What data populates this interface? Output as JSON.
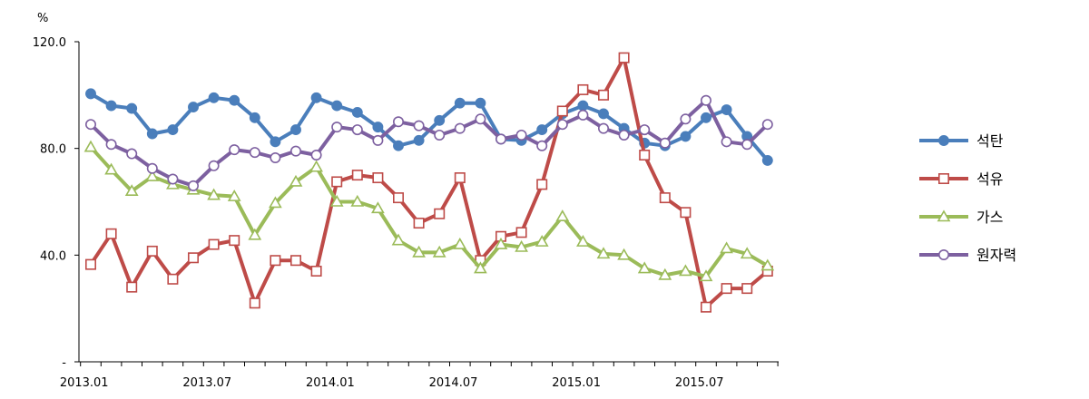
{
  "chart_data": {
    "type": "line",
    "ylabel": "%",
    "ylim": [
      0,
      120
    ],
    "y_ticks": [
      {
        "value": 0,
        "label": "-"
      },
      {
        "value": 40,
        "label": "40.0"
      },
      {
        "value": 80,
        "label": "80.0"
      },
      {
        "value": 120,
        "label": "120.0"
      }
    ],
    "x_ticks": [
      {
        "index": 0,
        "label": "2013.01"
      },
      {
        "index": 6,
        "label": "2013.07"
      },
      {
        "index": 12,
        "label": "2014.01"
      },
      {
        "index": 18,
        "label": "2014.07"
      },
      {
        "index": 24,
        "label": "2015.01"
      },
      {
        "index": 30,
        "label": "2015.07"
      }
    ],
    "x": [
      "2013.01",
      "2013.02",
      "2013.03",
      "2013.04",
      "2013.05",
      "2013.06",
      "2013.07",
      "2013.08",
      "2013.09",
      "2013.10",
      "2013.11",
      "2013.12",
      "2014.01",
      "2014.02",
      "2014.03",
      "2014.04",
      "2014.05",
      "2014.06",
      "2014.07",
      "2014.08",
      "2014.09",
      "2014.10",
      "2014.11",
      "2014.12",
      "2015.01",
      "2015.02",
      "2015.03",
      "2015.04",
      "2015.05",
      "2015.06",
      "2015.07",
      "2015.08",
      "2015.09",
      "2015.10"
    ],
    "legend_position": "right",
    "series": [
      {
        "name": "석탄",
        "color": "#4a7ebb",
        "marker": "filled-circle",
        "values": [
          100.5,
          96,
          95,
          85.5,
          87,
          95.5,
          99,
          98,
          91.5,
          82.5,
          87,
          99,
          96,
          93.5,
          88,
          81,
          83,
          90.5,
          97,
          97,
          83.5,
          83,
          87,
          93,
          96,
          93,
          87.5,
          82,
          81,
          84.5,
          91.5,
          94.5,
          84.5,
          75.5
        ]
      },
      {
        "name": "석유",
        "color": "#be4b48",
        "marker": "hollow-square",
        "values": [
          36.5,
          48,
          28,
          41.5,
          31,
          39,
          44,
          45.5,
          22,
          38,
          38,
          34,
          67.5,
          70,
          69,
          61.5,
          52,
          55.5,
          69,
          38,
          47,
          48.5,
          66.5,
          94,
          102,
          100,
          114,
          77.5,
          61.5,
          56,
          20.5,
          27.5,
          27.5,
          34
        ]
      },
      {
        "name": "가스",
        "color": "#9bbb59",
        "marker": "hollow-triangle",
        "values": [
          80.5,
          72,
          64,
          69.5,
          66.5,
          64.5,
          62.5,
          62,
          47.5,
          59.5,
          67.5,
          73,
          60,
          60,
          57.5,
          45.5,
          41,
          41,
          44,
          35,
          44,
          43,
          45,
          54.5,
          45,
          40.5,
          40,
          35,
          32.5,
          34,
          32,
          42.5,
          40.5,
          36
        ]
      },
      {
        "name": "원자력",
        "color": "#7d60a0",
        "marker": "hollow-circle",
        "values": [
          89,
          81.5,
          78,
          72.5,
          68.5,
          66,
          73.5,
          79.5,
          78.5,
          76.5,
          79,
          77.5,
          88,
          87,
          83,
          90,
          88.5,
          85,
          87.5,
          91,
          83.5,
          85,
          81,
          89,
          92.5,
          87.5,
          85,
          87,
          82,
          91,
          98,
          82.5,
          81.5,
          89
        ]
      }
    ]
  }
}
